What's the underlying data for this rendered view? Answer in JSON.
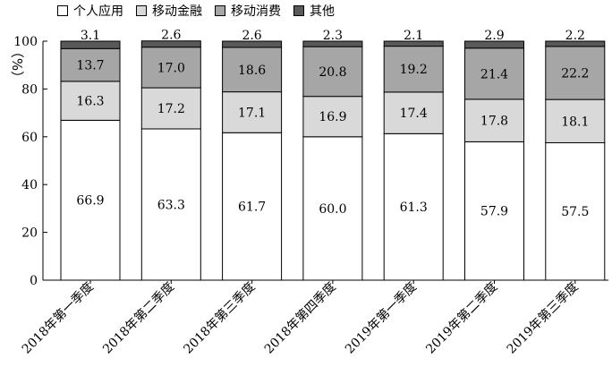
{
  "chart_data": {
    "type": "bar",
    "stacked": true,
    "title": "",
    "ylabel": "（%）",
    "xlabel": "",
    "ylim": [
      0,
      100
    ],
    "yticks": [
      0,
      20,
      40,
      60,
      80,
      100
    ],
    "grid": false,
    "legend_position": "top",
    "categories": [
      "2018年第一季度",
      "2018年第二季度",
      "2018年第三季度",
      "2018年第四季度",
      "2019年第一季度",
      "2019年第二季度",
      "2019年第三季度"
    ],
    "series": [
      {
        "name": "个人应用",
        "color": "#ffffff",
        "values": [
          66.9,
          63.3,
          61.7,
          60.0,
          61.3,
          57.9,
          57.5
        ],
        "labels": [
          "66.9",
          "63.3",
          "61.7",
          "60.0",
          "61.3",
          "57.9",
          "57.5"
        ]
      },
      {
        "name": "移动金融",
        "color": "#d9d9d9",
        "values": [
          16.3,
          17.2,
          17.1,
          16.9,
          17.4,
          17.8,
          18.1
        ],
        "labels": [
          "16.3",
          "17.2",
          "17.1",
          "16.9",
          "17.4",
          "17.8",
          "18.1"
        ]
      },
      {
        "name": "移动消费",
        "color": "#a6a6a6",
        "values": [
          13.7,
          17.0,
          18.6,
          20.8,
          19.2,
          21.4,
          22.2
        ],
        "labels": [
          "13.7",
          "17.0",
          "18.6",
          "20.8",
          "19.2",
          "21.4",
          "22.2"
        ]
      },
      {
        "name": "其他",
        "color": "#595959",
        "values": [
          3.1,
          2.6,
          2.6,
          2.3,
          2.1,
          2.9,
          2.2
        ],
        "labels": [
          "3.1",
          "2.6",
          "2.6",
          "2.3",
          "2.1",
          "2.9",
          "2.2"
        ]
      }
    ]
  }
}
